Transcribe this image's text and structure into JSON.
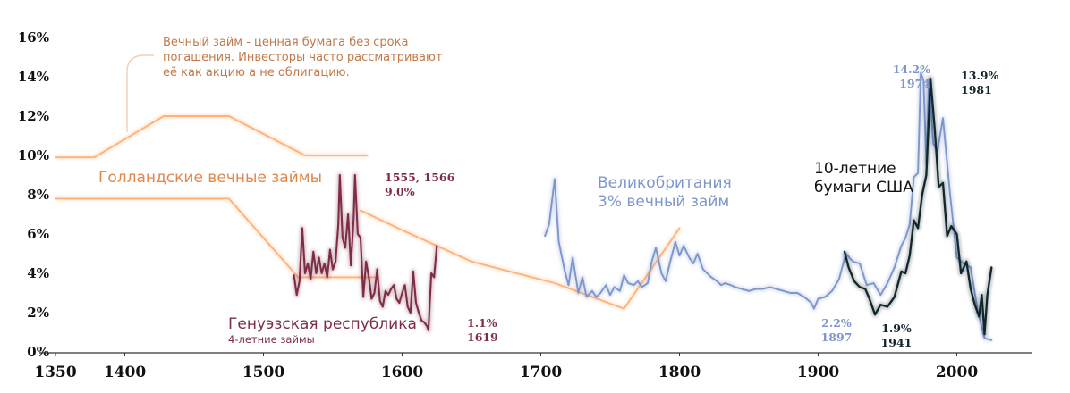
{
  "chart_data": {
    "type": "line",
    "title": "",
    "xlabel": "",
    "ylabel": "",
    "xlim": [
      1350,
      2035
    ],
    "ylim": [
      0,
      16.5
    ],
    "x_ticks": [
      "1350",
      "1400",
      "1500",
      "1600",
      "1700",
      "1800",
      "1900",
      "2000"
    ],
    "x_tick_values": [
      1350,
      1400,
      1500,
      1600,
      1700,
      1800,
      1900,
      2000
    ],
    "y_ticks": [
      "0%",
      "2%",
      "4%",
      "6%",
      "8%",
      "10%",
      "12%",
      "14%",
      "16%"
    ],
    "y_tick_values": [
      0,
      2,
      4,
      6,
      8,
      10,
      12,
      14,
      16
    ],
    "grid": false,
    "series": [
      {
        "name": "Голландские вечные займы",
        "color": "#ffb27a",
        "lines": [
          {
            "x": [
              1350,
              1378,
              1428,
              1475,
              1530,
              1575
            ],
            "y": [
              9.9,
              9.9,
              12.0,
              12.0,
              10.0,
              10.0
            ]
          },
          {
            "x": [
              1350,
              1378,
              1475,
              1525,
              1580
            ],
            "y": [
              7.8,
              7.8,
              7.8,
              3.8,
              3.8
            ]
          },
          {
            "x": [
              1570,
              1600,
              1650,
              1710,
              1760,
              1800
            ],
            "y": [
              7.2,
              6.2,
              4.6,
              3.5,
              2.2,
              6.3
            ]
          }
        ]
      },
      {
        "name": "Генуэзская республика",
        "color": "#7d2e46",
        "x": [
          1522,
          1524,
          1526,
          1528,
          1530,
          1532,
          1534,
          1536,
          1538,
          1540,
          1542,
          1544,
          1546,
          1548,
          1550,
          1552,
          1554,
          1555,
          1557,
          1559,
          1561,
          1563,
          1565,
          1566,
          1568,
          1570,
          1572,
          1574,
          1576,
          1578,
          1580,
          1582,
          1584,
          1586,
          1588,
          1590,
          1592,
          1594,
          1596,
          1598,
          1600,
          1602,
          1604,
          1606,
          1608,
          1610,
          1612,
          1614,
          1616,
          1618,
          1619,
          1621,
          1623,
          1625
        ],
        "y": [
          3.9,
          2.9,
          3.6,
          6.3,
          4.0,
          4.5,
          3.7,
          5.1,
          4.0,
          4.8,
          4.0,
          4.5,
          3.8,
          5.2,
          4.2,
          4.6,
          6.5,
          9.0,
          5.8,
          5.3,
          7.0,
          4.4,
          6.8,
          9.0,
          6.0,
          5.8,
          2.8,
          4.6,
          3.8,
          2.7,
          3.0,
          4.2,
          2.6,
          2.3,
          3.1,
          2.9,
          3.2,
          3.4,
          2.7,
          2.5,
          3.0,
          3.4,
          2.3,
          2.0,
          4.1,
          2.5,
          2.0,
          1.6,
          1.5,
          1.3,
          1.1,
          4.0,
          3.8,
          5.4
        ]
      },
      {
        "name": "Великобритания 3% вечный займ",
        "color": "#7e96cc",
        "x": [
          1703,
          1706,
          1710,
          1713,
          1717,
          1720,
          1723,
          1727,
          1730,
          1733,
          1737,
          1740,
          1743,
          1747,
          1750,
          1753,
          1757,
          1760,
          1763,
          1767,
          1770,
          1773,
          1777,
          1780,
          1783,
          1787,
          1790,
          1793,
          1797,
          1800,
          1803,
          1807,
          1810,
          1813,
          1817,
          1820,
          1823,
          1827,
          1830,
          1833,
          1837,
          1840,
          1845,
          1850,
          1855,
          1860,
          1865,
          1870,
          1875,
          1880,
          1885,
          1890,
          1895,
          1897,
          1900,
          1905,
          1910,
          1915,
          1920,
          1925,
          1930,
          1935,
          1940,
          1945,
          1950,
          1955,
          1960,
          1963,
          1966,
          1969,
          1972,
          1974,
          1976,
          1978,
          1980,
          1983,
          1986,
          1990,
          1995,
          2000,
          2005,
          2010,
          2015,
          2020,
          2025
        ],
        "y": [
          5.9,
          6.5,
          8.8,
          5.6,
          4.2,
          3.4,
          4.8,
          3.0,
          3.8,
          2.8,
          3.1,
          2.8,
          3.0,
          3.4,
          2.9,
          3.3,
          3.1,
          3.9,
          3.5,
          3.4,
          3.6,
          3.3,
          3.5,
          4.6,
          5.3,
          4.0,
          3.6,
          4.5,
          5.6,
          4.9,
          5.4,
          4.8,
          4.5,
          5.0,
          4.2,
          4.0,
          3.8,
          3.6,
          3.4,
          3.5,
          3.4,
          3.3,
          3.2,
          3.1,
          3.2,
          3.2,
          3.3,
          3.2,
          3.1,
          3.0,
          3.0,
          2.8,
          2.5,
          2.2,
          2.7,
          2.8,
          3.1,
          3.7,
          5.0,
          4.6,
          4.5,
          3.4,
          3.5,
          2.9,
          3.5,
          4.3,
          5.4,
          5.8,
          6.5,
          8.9,
          9.1,
          14.2,
          13.8,
          9.6,
          13.9,
          10.6,
          10.2,
          11.9,
          8.1,
          4.8,
          4.5,
          4.3,
          2.1,
          0.7,
          0.6
        ]
      },
      {
        "name": "10-летние бумаги США",
        "color": "#12252a",
        "x": [
          1919,
          1922,
          1926,
          1930,
          1934,
          1937,
          1941,
          1945,
          1950,
          1955,
          1960,
          1963,
          1966,
          1969,
          1972,
          1975,
          1978,
          1981,
          1984,
          1987,
          1990,
          1993,
          1996,
          2000,
          2003,
          2007,
          2010,
          2013,
          2016,
          2018,
          2020,
          2022,
          2025
        ],
        "y": [
          5.1,
          4.3,
          3.6,
          3.3,
          3.2,
          2.7,
          1.9,
          2.4,
          2.3,
          2.8,
          4.1,
          4.0,
          4.9,
          6.7,
          6.3,
          8.0,
          9.0,
          13.9,
          11.4,
          8.4,
          8.6,
          5.9,
          6.4,
          6.0,
          4.0,
          4.6,
          3.2,
          2.4,
          1.8,
          2.9,
          0.9,
          2.9,
          4.3
        ]
      }
    ],
    "series_labels": [
      {
        "lines": [
          "Голландские вечные займы"
        ]
      },
      {
        "lines": [
          "Генуэзская республика"
        ],
        "sub": "4-летние займы"
      },
      {
        "lines": [
          "Великобритания",
          "3% вечный займ"
        ]
      },
      {
        "lines": [
          "10-летние",
          "бумаги США"
        ]
      }
    ],
    "annotations": [
      {
        "id": "perpetual",
        "lines": [
          "Вечный займ - ценная бумага без срока",
          "погашения. Инвесторы часто рассматривают",
          "её как акцию а не облигацию."
        ],
        "color": "#c07a4a"
      },
      {
        "id": "genoa-peak",
        "lines": [
          "1555, 1566",
          "9.0%"
        ],
        "color": "#7d2e46"
      },
      {
        "id": "genoa-low",
        "lines": [
          "1.1%",
          "1619"
        ],
        "color": "#7d2e46"
      },
      {
        "id": "uk-peak",
        "lines": [
          "14.2%",
          "1974"
        ],
        "color": "#7e96cc"
      },
      {
        "id": "uk-low",
        "lines": [
          "2.2%",
          "1897"
        ],
        "color": "#7e96cc"
      },
      {
        "id": "us-peak",
        "lines": [
          "13.9%",
          "1981"
        ],
        "color": "#12252a"
      },
      {
        "id": "us-low",
        "lines": [
          "1.9%",
          "1941"
        ],
        "color": "#12252a"
      }
    ]
  }
}
